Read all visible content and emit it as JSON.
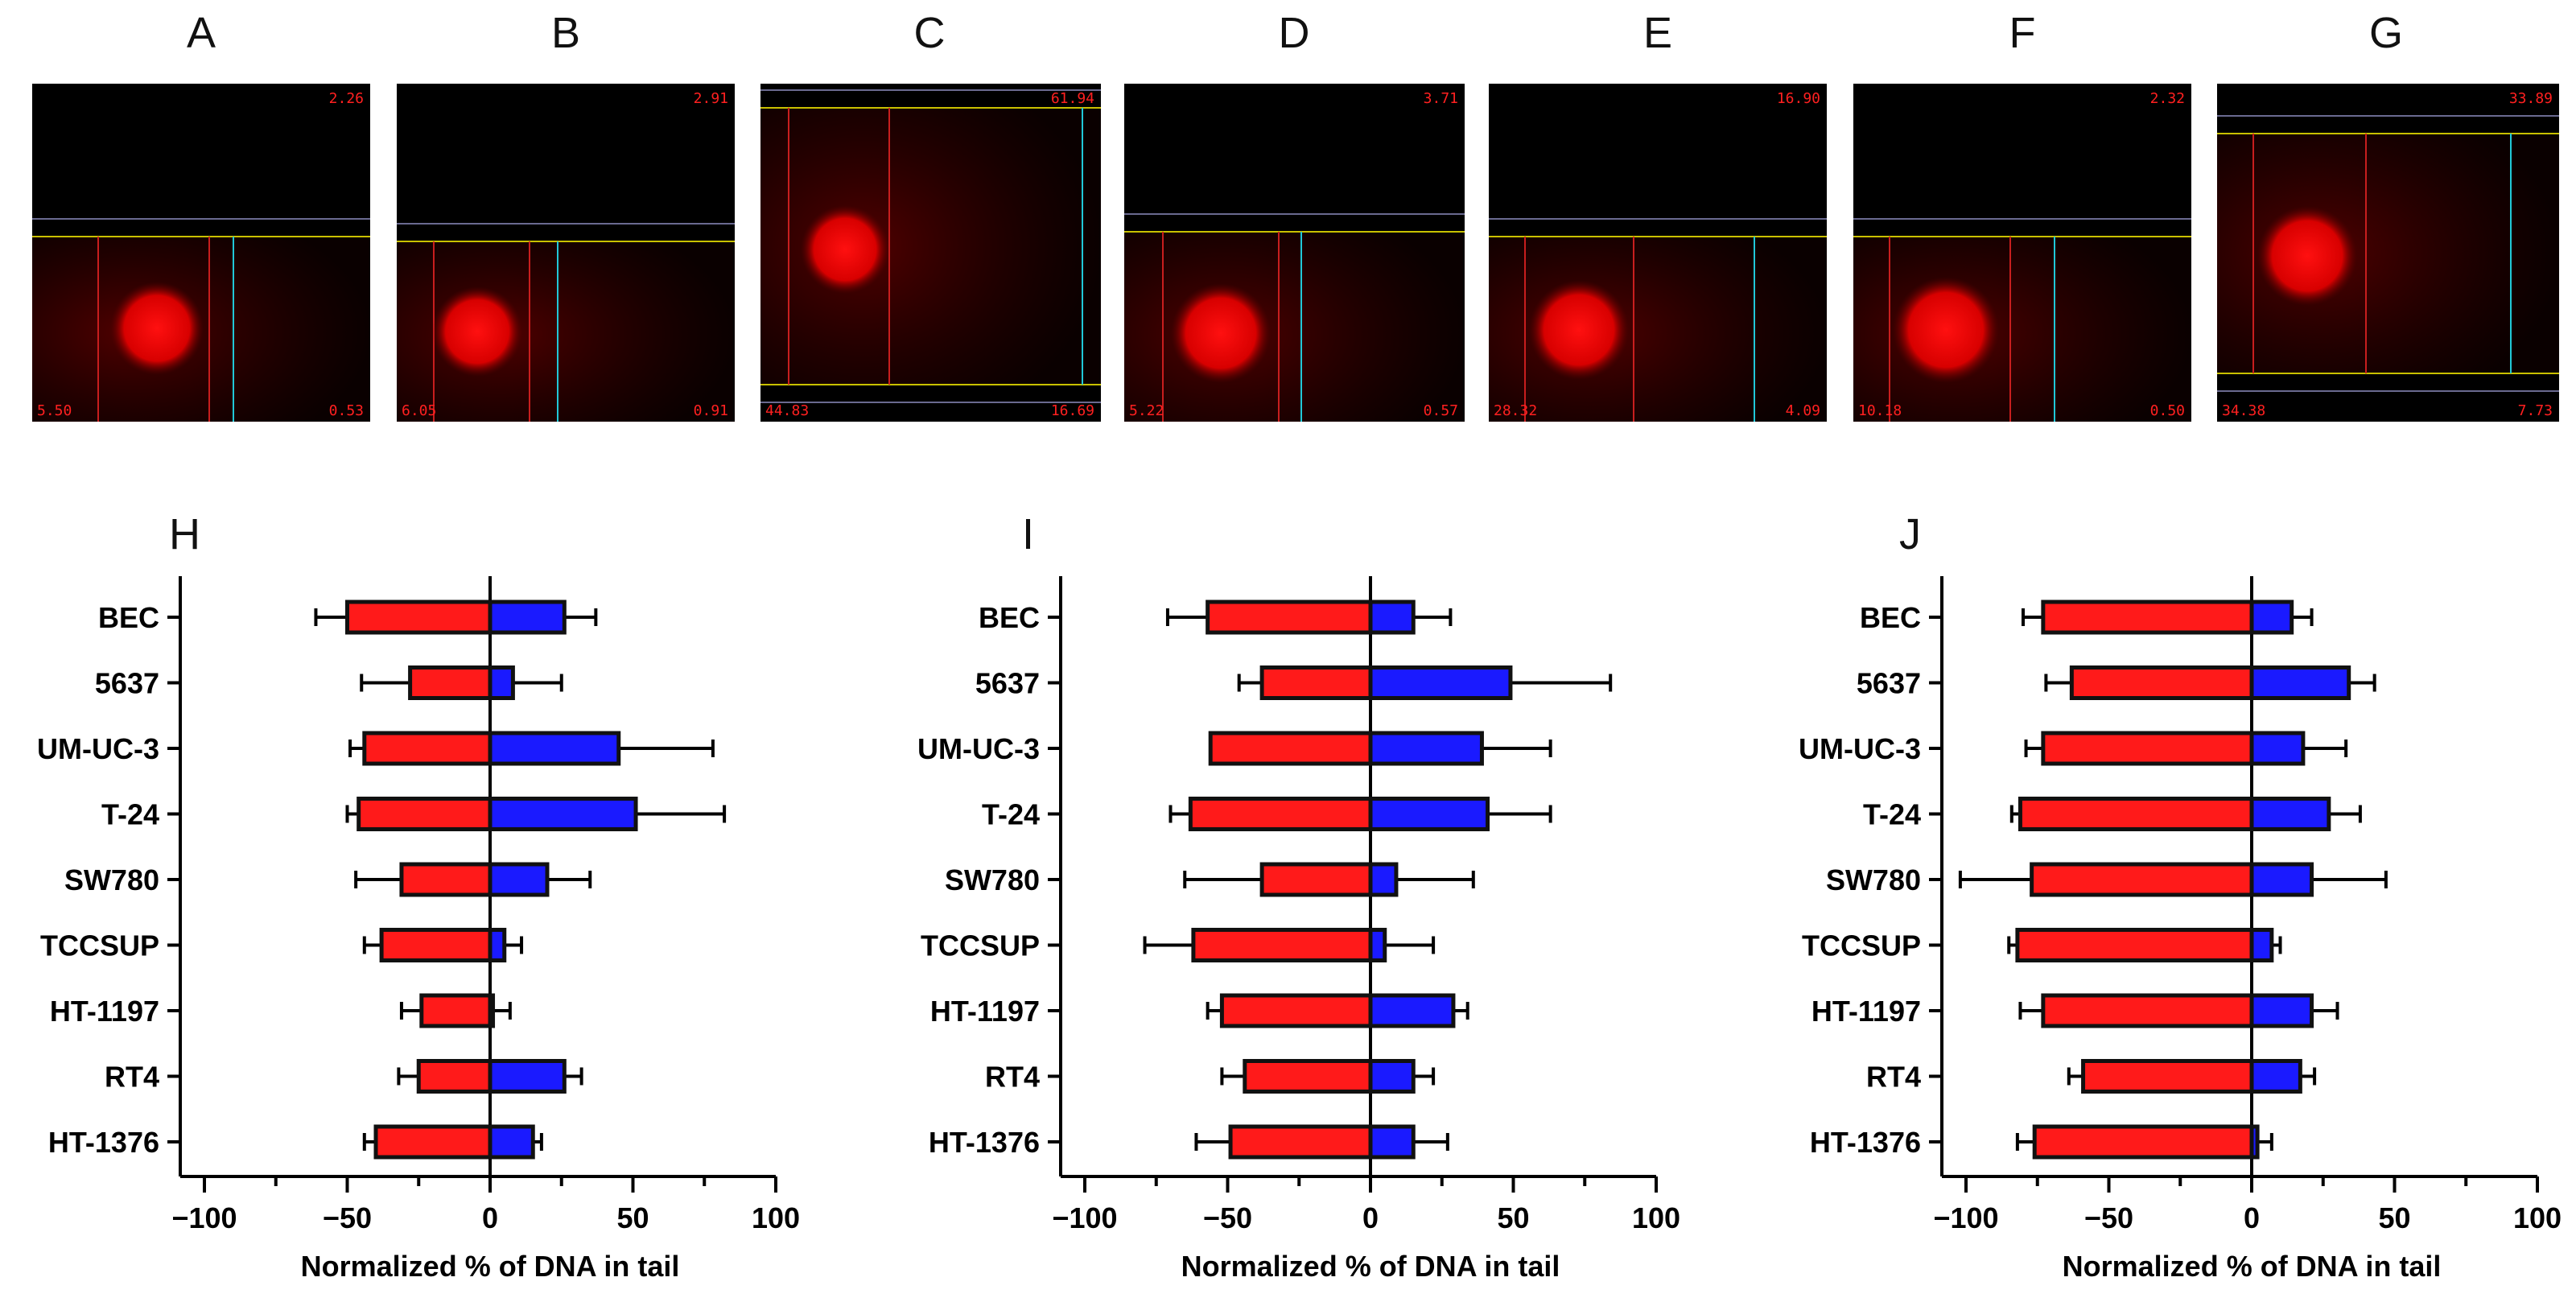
{
  "colors": {
    "negative_bar": "#ff1a1a",
    "positive_bar": "#1a1aff",
    "comet_head": "#ff1a1a",
    "readout": "#ff2020",
    "line_yellow": "#c8c000",
    "line_cyan": "#21c8d8",
    "line_red": "#c81e1e",
    "line_gray": "#6a6a90"
  },
  "comet_panels": [
    {
      "letter": "A",
      "top_right": "2.26",
      "bottom_left": "5.50",
      "bottom_right": "0.53"
    },
    {
      "letter": "B",
      "top_right": "2.91",
      "bottom_left": "6.05",
      "bottom_right": "0.91"
    },
    {
      "letter": "C",
      "top_right": "61.94",
      "bottom_left": "44.83",
      "bottom_right": "16.69"
    },
    {
      "letter": "D",
      "top_right": "3.71",
      "bottom_left": "5.22",
      "bottom_right": "0.57"
    },
    {
      "letter": "E",
      "top_right": "16.90",
      "bottom_left": "28.32",
      "bottom_right": "4.09"
    },
    {
      "letter": "F",
      "top_right": "2.32",
      "bottom_left": "10.18",
      "bottom_right": "0.50"
    },
    {
      "letter": "G",
      "top_right": "33.89",
      "bottom_left": "34.38",
      "bottom_right": "7.73"
    }
  ],
  "chart_data": [
    {
      "type": "bar",
      "orientation": "horizontal",
      "panel": "H",
      "xlabel": "Normalized % of DNA in tail",
      "xlim": [
        -100,
        100
      ],
      "xticks": [
        "−100",
        "−50",
        "0",
        "50",
        "100"
      ],
      "categories": [
        "BEC",
        "5637",
        "UM-UC-3",
        "T-24",
        "SW780",
        "TCCSUP",
        "HT-1197",
        "RT4",
        "HT-1376"
      ],
      "series": [
        {
          "name": "negative",
          "color": "#ff1a1a",
          "values": [
            -50,
            -28,
            -44,
            -46,
            -31,
            -38,
            -24,
            -25,
            -40
          ],
          "errors": [
            11,
            17,
            5,
            4,
            16,
            6,
            7,
            7,
            4
          ]
        },
        {
          "name": "positive",
          "color": "#1a1aff",
          "values": [
            26,
            8,
            45,
            51,
            20,
            5,
            1,
            26,
            15
          ],
          "errors": [
            11,
            17,
            33,
            31,
            15,
            6,
            6,
            6,
            3
          ]
        }
      ]
    },
    {
      "type": "bar",
      "orientation": "horizontal",
      "panel": "I",
      "xlabel": "Normalized % of DNA in tail",
      "xlim": [
        -100,
        100
      ],
      "xticks": [
        "−100",
        "−50",
        "0",
        "50",
        "100"
      ],
      "categories": [
        "BEC",
        "5637",
        "UM-UC-3",
        "T-24",
        "SW780",
        "TCCSUP",
        "HT-1197",
        "RT4",
        "HT-1376"
      ],
      "series": [
        {
          "name": "negative",
          "color": "#ff1a1a",
          "values": [
            -57,
            -38,
            -56,
            -63,
            -38,
            -62,
            -52,
            -44,
            -49
          ],
          "errors": [
            14,
            8,
            0,
            7,
            27,
            17,
            5,
            8,
            12
          ]
        },
        {
          "name": "positive",
          "color": "#1a1aff",
          "values": [
            15,
            49,
            39,
            41,
            9,
            5,
            29,
            15,
            15
          ],
          "errors": [
            13,
            35,
            24,
            22,
            27,
            17,
            5,
            7,
            12
          ]
        }
      ]
    },
    {
      "type": "bar",
      "orientation": "horizontal",
      "panel": "J",
      "xlabel": "Normalized % of DNA in tail",
      "xlim": [
        -100,
        100
      ],
      "xticks": [
        "−100",
        "−50",
        "0",
        "50",
        "100"
      ],
      "categories": [
        "BEC",
        "5637",
        "UM-UC-3",
        "T-24",
        "SW780",
        "TCCSUP",
        "HT-1197",
        "RT4",
        "HT-1376"
      ],
      "series": [
        {
          "name": "negative",
          "color": "#ff1a1a",
          "values": [
            -73,
            -63,
            -73,
            -81,
            -77,
            -82,
            -73,
            -59,
            -76
          ],
          "errors": [
            7,
            9,
            6,
            3,
            25,
            3,
            8,
            5,
            6
          ]
        },
        {
          "name": "positive",
          "color": "#1a1aff",
          "values": [
            14,
            34,
            18,
            27,
            21,
            7,
            21,
            17,
            2
          ],
          "errors": [
            7,
            9,
            15,
            11,
            26,
            3,
            9,
            5,
            5
          ]
        }
      ]
    }
  ]
}
